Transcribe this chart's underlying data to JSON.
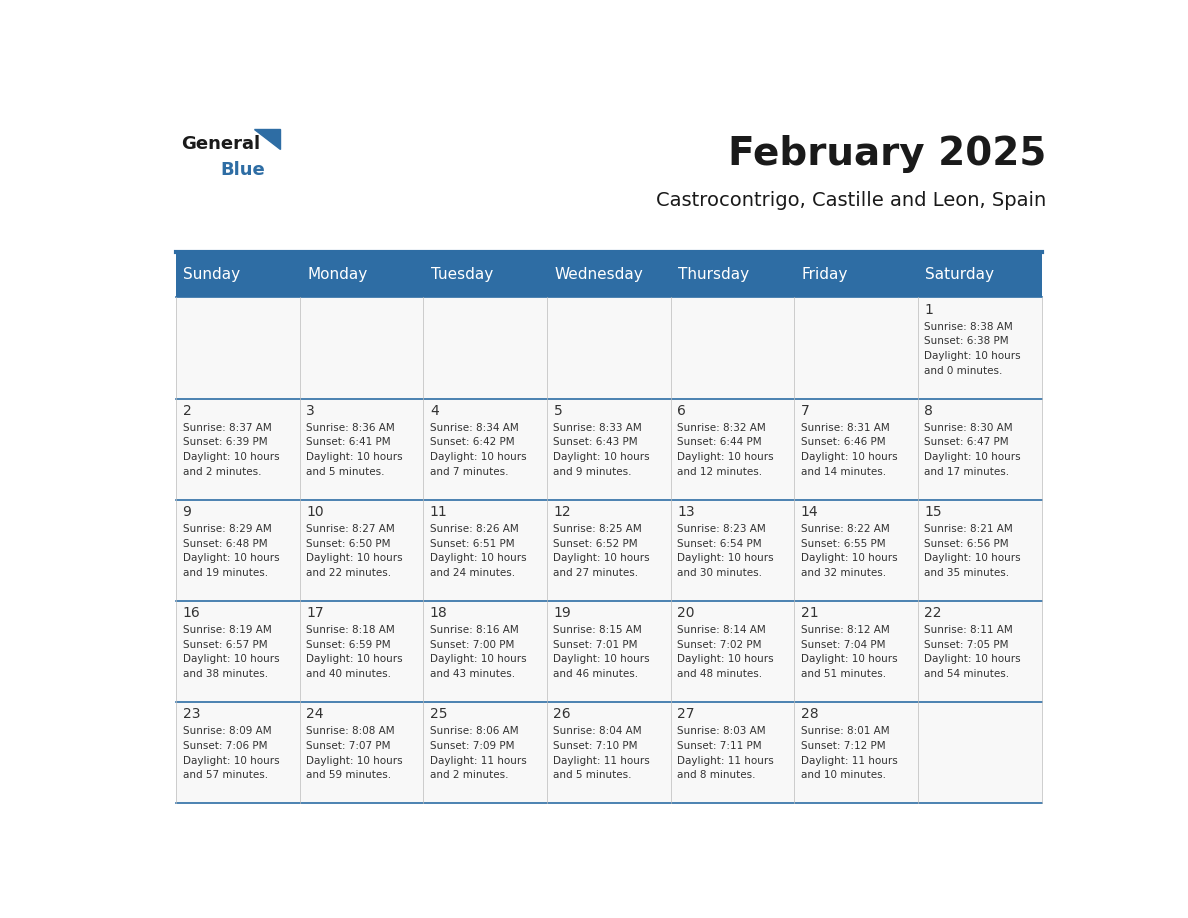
{
  "title": "February 2025",
  "subtitle": "Castrocontrigo, Castille and Leon, Spain",
  "header_bg": "#2E6DA4",
  "header_text_color": "#FFFFFF",
  "day_names": [
    "Sunday",
    "Monday",
    "Tuesday",
    "Wednesday",
    "Thursday",
    "Friday",
    "Saturday"
  ],
  "title_color": "#1a1a1a",
  "subtitle_color": "#1a1a1a",
  "border_color": "#2E6DA4",
  "text_color": "#333333",
  "logo_general_color": "#1a1a1a",
  "logo_blue_color": "#2E6DA4",
  "cell_bg": "#f8f8f8",
  "days": [
    {
      "day": 1,
      "col": 6,
      "row": 0,
      "sunrise": "8:38 AM",
      "sunset": "6:38 PM",
      "daylight_hours": 10,
      "daylight_minutes": 0
    },
    {
      "day": 2,
      "col": 0,
      "row": 1,
      "sunrise": "8:37 AM",
      "sunset": "6:39 PM",
      "daylight_hours": 10,
      "daylight_minutes": 2
    },
    {
      "day": 3,
      "col": 1,
      "row": 1,
      "sunrise": "8:36 AM",
      "sunset": "6:41 PM",
      "daylight_hours": 10,
      "daylight_minutes": 5
    },
    {
      "day": 4,
      "col": 2,
      "row": 1,
      "sunrise": "8:34 AM",
      "sunset": "6:42 PM",
      "daylight_hours": 10,
      "daylight_minutes": 7
    },
    {
      "day": 5,
      "col": 3,
      "row": 1,
      "sunrise": "8:33 AM",
      "sunset": "6:43 PM",
      "daylight_hours": 10,
      "daylight_minutes": 9
    },
    {
      "day": 6,
      "col": 4,
      "row": 1,
      "sunrise": "8:32 AM",
      "sunset": "6:44 PM",
      "daylight_hours": 10,
      "daylight_minutes": 12
    },
    {
      "day": 7,
      "col": 5,
      "row": 1,
      "sunrise": "8:31 AM",
      "sunset": "6:46 PM",
      "daylight_hours": 10,
      "daylight_minutes": 14
    },
    {
      "day": 8,
      "col": 6,
      "row": 1,
      "sunrise": "8:30 AM",
      "sunset": "6:47 PM",
      "daylight_hours": 10,
      "daylight_minutes": 17
    },
    {
      "day": 9,
      "col": 0,
      "row": 2,
      "sunrise": "8:29 AM",
      "sunset": "6:48 PM",
      "daylight_hours": 10,
      "daylight_minutes": 19
    },
    {
      "day": 10,
      "col": 1,
      "row": 2,
      "sunrise": "8:27 AM",
      "sunset": "6:50 PM",
      "daylight_hours": 10,
      "daylight_minutes": 22
    },
    {
      "day": 11,
      "col": 2,
      "row": 2,
      "sunrise": "8:26 AM",
      "sunset": "6:51 PM",
      "daylight_hours": 10,
      "daylight_minutes": 24
    },
    {
      "day": 12,
      "col": 3,
      "row": 2,
      "sunrise": "8:25 AM",
      "sunset": "6:52 PM",
      "daylight_hours": 10,
      "daylight_minutes": 27
    },
    {
      "day": 13,
      "col": 4,
      "row": 2,
      "sunrise": "8:23 AM",
      "sunset": "6:54 PM",
      "daylight_hours": 10,
      "daylight_minutes": 30
    },
    {
      "day": 14,
      "col": 5,
      "row": 2,
      "sunrise": "8:22 AM",
      "sunset": "6:55 PM",
      "daylight_hours": 10,
      "daylight_minutes": 32
    },
    {
      "day": 15,
      "col": 6,
      "row": 2,
      "sunrise": "8:21 AM",
      "sunset": "6:56 PM",
      "daylight_hours": 10,
      "daylight_minutes": 35
    },
    {
      "day": 16,
      "col": 0,
      "row": 3,
      "sunrise": "8:19 AM",
      "sunset": "6:57 PM",
      "daylight_hours": 10,
      "daylight_minutes": 38
    },
    {
      "day": 17,
      "col": 1,
      "row": 3,
      "sunrise": "8:18 AM",
      "sunset": "6:59 PM",
      "daylight_hours": 10,
      "daylight_minutes": 40
    },
    {
      "day": 18,
      "col": 2,
      "row": 3,
      "sunrise": "8:16 AM",
      "sunset": "7:00 PM",
      "daylight_hours": 10,
      "daylight_minutes": 43
    },
    {
      "day": 19,
      "col": 3,
      "row": 3,
      "sunrise": "8:15 AM",
      "sunset": "7:01 PM",
      "daylight_hours": 10,
      "daylight_minutes": 46
    },
    {
      "day": 20,
      "col": 4,
      "row": 3,
      "sunrise": "8:14 AM",
      "sunset": "7:02 PM",
      "daylight_hours": 10,
      "daylight_minutes": 48
    },
    {
      "day": 21,
      "col": 5,
      "row": 3,
      "sunrise": "8:12 AM",
      "sunset": "7:04 PM",
      "daylight_hours": 10,
      "daylight_minutes": 51
    },
    {
      "day": 22,
      "col": 6,
      "row": 3,
      "sunrise": "8:11 AM",
      "sunset": "7:05 PM",
      "daylight_hours": 10,
      "daylight_minutes": 54
    },
    {
      "day": 23,
      "col": 0,
      "row": 4,
      "sunrise": "8:09 AM",
      "sunset": "7:06 PM",
      "daylight_hours": 10,
      "daylight_minutes": 57
    },
    {
      "day": 24,
      "col": 1,
      "row": 4,
      "sunrise": "8:08 AM",
      "sunset": "7:07 PM",
      "daylight_hours": 10,
      "daylight_minutes": 59
    },
    {
      "day": 25,
      "col": 2,
      "row": 4,
      "sunrise": "8:06 AM",
      "sunset": "7:09 PM",
      "daylight_hours": 11,
      "daylight_minutes": 2
    },
    {
      "day": 26,
      "col": 3,
      "row": 4,
      "sunrise": "8:04 AM",
      "sunset": "7:10 PM",
      "daylight_hours": 11,
      "daylight_minutes": 5
    },
    {
      "day": 27,
      "col": 4,
      "row": 4,
      "sunrise": "8:03 AM",
      "sunset": "7:11 PM",
      "daylight_hours": 11,
      "daylight_minutes": 8
    },
    {
      "day": 28,
      "col": 5,
      "row": 4,
      "sunrise": "8:01 AM",
      "sunset": "7:12 PM",
      "daylight_hours": 11,
      "daylight_minutes": 10
    }
  ]
}
